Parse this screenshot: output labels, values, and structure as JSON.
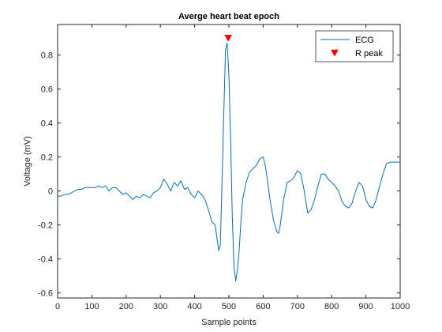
{
  "chart_data": {
    "type": "line",
    "title": "Averge heart beat epoch",
    "xlabel": "Sample points",
    "ylabel": "Voltage (mV)",
    "xlim": [
      0,
      1000
    ],
    "ylim": [
      -0.63,
      0.98
    ],
    "xticks": [
      0,
      100,
      200,
      300,
      400,
      500,
      600,
      700,
      800,
      900,
      1000
    ],
    "yticks": [
      -0.6,
      -0.4,
      -0.2,
      0,
      0.2,
      0.4,
      0.6,
      0.8
    ],
    "grid": false,
    "legend_position": "top-right",
    "series": [
      {
        "name": "ECG",
        "color": "#0072bd",
        "x": [
          0,
          10,
          20,
          30,
          40,
          50,
          60,
          70,
          80,
          90,
          100,
          110,
          120,
          130,
          140,
          150,
          160,
          170,
          180,
          190,
          200,
          210,
          220,
          230,
          240,
          250,
          260,
          270,
          280,
          290,
          300,
          310,
          320,
          330,
          340,
          350,
          360,
          370,
          380,
          390,
          400,
          410,
          420,
          430,
          440,
          450,
          460,
          470,
          475,
          480,
          485,
          490,
          495,
          500,
          505,
          510,
          515,
          520,
          525,
          530,
          535,
          540,
          550,
          560,
          570,
          580,
          590,
          600,
          605,
          610,
          620,
          630,
          640,
          645,
          650,
          660,
          670,
          680,
          690,
          700,
          710,
          720,
          730,
          740,
          750,
          760,
          770,
          780,
          790,
          800,
          810,
          820,
          830,
          840,
          850,
          860,
          870,
          880,
          890,
          900,
          910,
          920,
          930,
          940,
          950,
          960,
          970,
          980,
          990,
          1000
        ],
        "y": [
          -0.03,
          -0.03,
          -0.02,
          -0.02,
          -0.01,
          0.0,
          0.01,
          0.01,
          0.02,
          0.02,
          0.02,
          0.02,
          0.03,
          0.02,
          0.03,
          0.0,
          0.02,
          0.02,
          0.0,
          -0.02,
          -0.01,
          -0.03,
          -0.05,
          -0.03,
          -0.04,
          -0.02,
          -0.03,
          -0.04,
          -0.01,
          0.0,
          0.02,
          0.07,
          0.04,
          0.0,
          0.05,
          0.03,
          0.06,
          0.01,
          0.02,
          -0.02,
          -0.04,
          0.0,
          -0.02,
          -0.05,
          -0.11,
          -0.18,
          -0.2,
          -0.35,
          -0.32,
          0.05,
          0.45,
          0.83,
          0.87,
          0.68,
          0.3,
          -0.15,
          -0.45,
          -0.53,
          -0.46,
          -0.35,
          -0.18,
          -0.05,
          0.05,
          0.11,
          0.13,
          0.15,
          0.19,
          0.2,
          0.16,
          0.1,
          -0.05,
          -0.17,
          -0.24,
          -0.25,
          -0.2,
          -0.05,
          0.05,
          0.06,
          0.08,
          0.12,
          0.1,
          0.0,
          -0.13,
          -0.11,
          -0.05,
          0.03,
          0.1,
          0.1,
          0.07,
          0.05,
          0.03,
          0.0,
          -0.06,
          -0.09,
          -0.1,
          -0.07,
          0.0,
          0.05,
          0.03,
          -0.05,
          -0.09,
          -0.1,
          -0.05,
          0.03,
          0.1,
          0.16,
          0.17,
          0.17,
          0.17,
          0.17
        ]
      },
      {
        "name": "R peak",
        "color": "#ff0000",
        "marker": "triangle-down",
        "x": [
          498
        ],
        "y": [
          0.9
        ]
      }
    ]
  }
}
